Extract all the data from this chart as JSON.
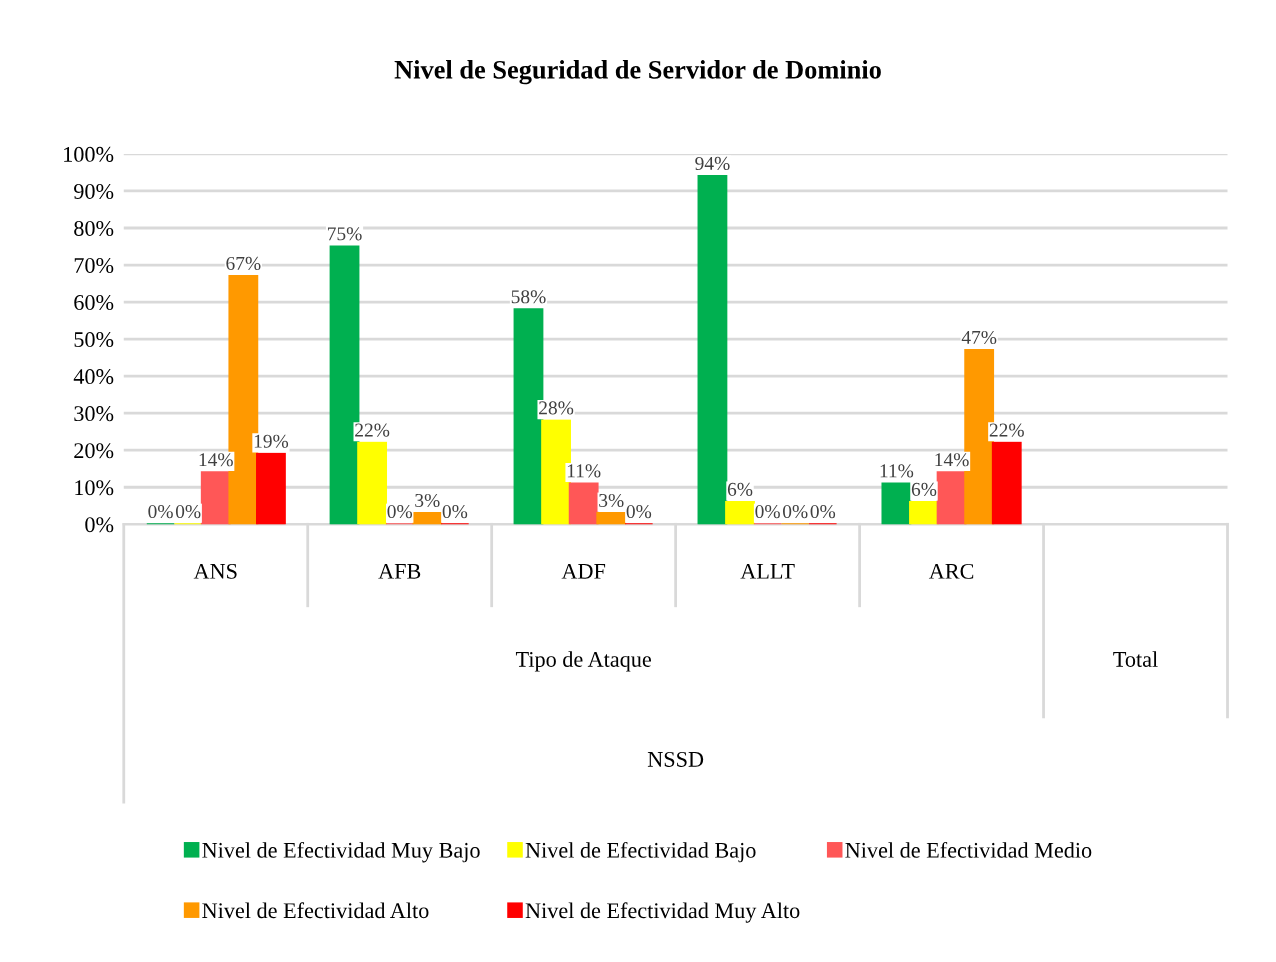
{
  "chart_data": {
    "type": "bar",
    "title": "Nivel de Seguridad de Servidor de Dominio",
    "categories": [
      "ANS",
      "AFB",
      "ADF",
      "ALLT",
      "ARC",
      null
    ],
    "series": [
      {
        "name": "Nivel de Efectividad Muy Bajo",
        "color": "#00b050",
        "values": [
          0,
          75,
          58,
          94,
          11,
          null
        ],
        "value_labels": [
          "0%",
          "75%",
          "58%",
          "94%",
          "11%",
          null
        ]
      },
      {
        "name": "Nivel de Efectividad Bajo",
        "color": "#ffff00",
        "values": [
          0,
          22,
          28,
          6,
          6,
          null
        ],
        "value_labels": [
          "0%",
          "22%",
          "28%",
          "6%",
          "6%",
          null
        ]
      },
      {
        "name": "Nivel de Efectividad Medio",
        "color": "#ff5757",
        "values": [
          14,
          0,
          11,
          0,
          14,
          null
        ],
        "value_labels": [
          "14%",
          "0%",
          "11%",
          "0%",
          "14%",
          null
        ]
      },
      {
        "name": "Nivel de Efectividad Alto",
        "color": "#ff9900",
        "values": [
          67,
          3,
          3,
          0,
          47,
          null
        ],
        "value_labels": [
          "67%",
          "3%",
          "3%",
          "0%",
          "47%",
          null
        ]
      },
      {
        "name": "Nivel de Efectividad Muy Alto",
        "color": "#ff0000",
        "values": [
          19,
          0,
          0,
          0,
          22,
          null
        ],
        "value_labels": [
          "19%",
          "0%",
          "0%",
          "0%",
          "22%",
          null
        ]
      }
    ],
    "ylim": [
      0,
      100
    ],
    "yticks": [
      {
        "value": 0,
        "label": "0%"
      },
      {
        "value": 10,
        "label": "10%"
      },
      {
        "value": 20,
        "label": "20%"
      },
      {
        "value": 30,
        "label": "30%"
      },
      {
        "value": 40,
        "label": "40%"
      },
      {
        "value": 50,
        "label": "50%"
      },
      {
        "value": 60,
        "label": "60%"
      },
      {
        "value": 70,
        "label": "70%"
      },
      {
        "value": 80,
        "label": "80%"
      },
      {
        "value": 90,
        "label": "90%"
      },
      {
        "value": 100,
        "label": "100%"
      }
    ],
    "annotations": [
      "Tipo de Ataque",
      "Total",
      "NSSD"
    ],
    "grid": "y",
    "legend": "bottom"
  }
}
